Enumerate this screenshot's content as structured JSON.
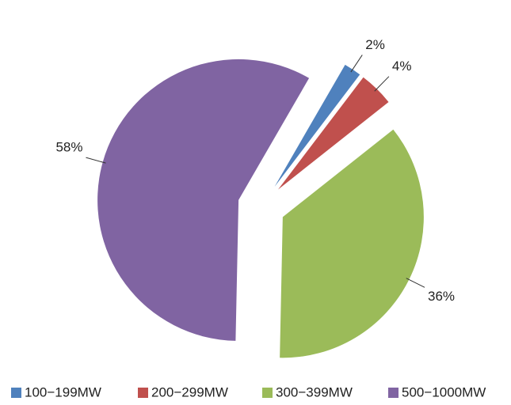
{
  "chart_data": {
    "type": "pie",
    "categories": [
      "100−199MW",
      "200−299MW",
      "300−399MW",
      "500−1000MW"
    ],
    "values": [
      2,
      4,
      36,
      58
    ],
    "value_labels": [
      "2%",
      "4%",
      "36%",
      "58%"
    ],
    "colors": [
      "#4f81bd",
      "#c0504d",
      "#9bbb59",
      "#8064a2"
    ],
    "legend": "bottom"
  }
}
